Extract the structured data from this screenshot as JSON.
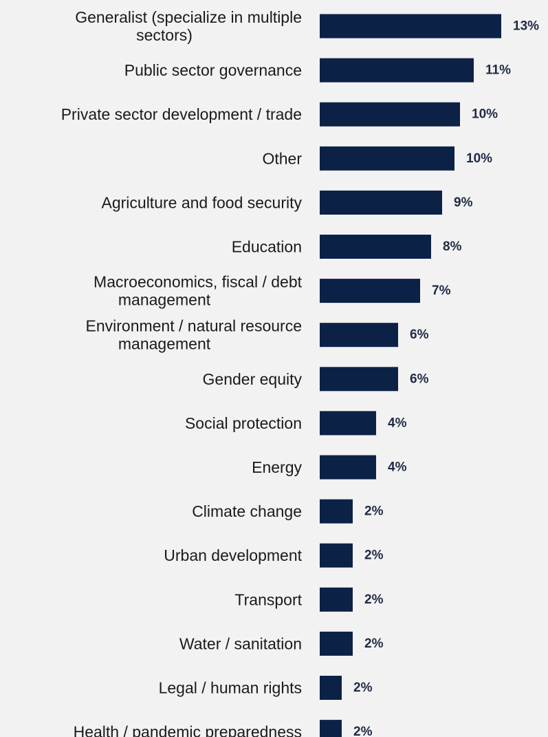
{
  "chart_data": {
    "type": "bar",
    "orientation": "horizontal",
    "categories": [
      "Generalist (specialize in multiple sectors)",
      "Public sector governance",
      "Private sector development / trade",
      "Other",
      "Agriculture and food security",
      "Education",
      "Macroeconomics, fiscal / debt management",
      "Environment / natural resource management",
      "Gender equity",
      "Social protection",
      "Energy",
      "Climate change",
      "Urban development",
      "Transport",
      "Water / sanitation",
      "Legal / human rights",
      "Health / pandemic preparedness"
    ],
    "category_lines": [
      [
        "Generalist (specialize in multiple",
        "sectors)"
      ],
      [
        "Public sector governance"
      ],
      [
        "Private sector development / trade"
      ],
      [
        "Other"
      ],
      [
        "Agriculture and food security"
      ],
      [
        "Education"
      ],
      [
        "Macroeconomics, fiscal / debt",
        "management"
      ],
      [
        "Environment / natural resource",
        "management"
      ],
      [
        "Gender equity"
      ],
      [
        "Social protection"
      ],
      [
        "Energy"
      ],
      [
        "Climate change"
      ],
      [
        "Urban development"
      ],
      [
        "Transport"
      ],
      [
        "Water / sanitation"
      ],
      [
        "Legal / human rights"
      ],
      [
        "Health / pandemic preparedness"
      ]
    ],
    "values": [
      13.2,
      11.2,
      10.2,
      9.8,
      8.9,
      8.1,
      7.3,
      5.7,
      5.7,
      4.1,
      4.1,
      2.4,
      2.4,
      2.4,
      2.4,
      1.6,
      1.6
    ],
    "value_labels": [
      "13%",
      "11%",
      "10%",
      "10%",
      "9%",
      "8%",
      "7%",
      "6%",
      "6%",
      "4%",
      "4%",
      "2%",
      "2%",
      "2%",
      "2%",
      "2%",
      "2%"
    ],
    "title": "",
    "xlabel": "",
    "ylabel": "",
    "xlim": [
      0,
      13.2
    ],
    "grid": false,
    "legend": "none",
    "colors": {
      "bar": "#0c2146",
      "value_text": "#1f2a44",
      "label_text": "#1a1a1a",
      "background": "#f2f2f2"
    }
  }
}
